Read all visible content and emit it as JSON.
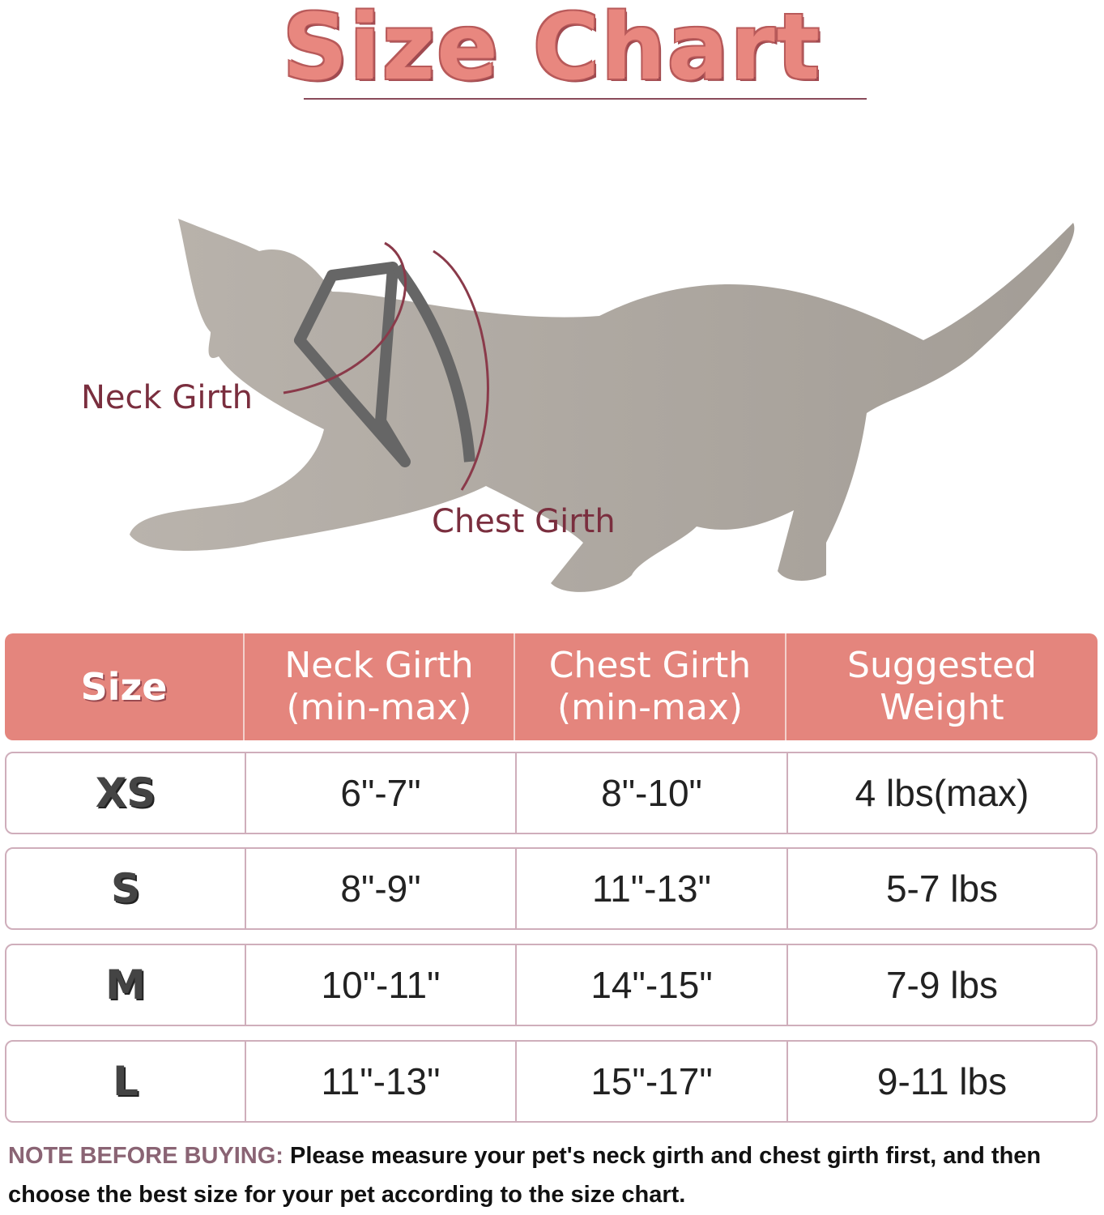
{
  "title": "Size Chart",
  "diagram": {
    "neck_label": "Neck Girth",
    "chest_label": "Chest Girth"
  },
  "table": {
    "headers": [
      "Size",
      "Neck Girth\n(min-max)",
      "Chest Girth\n(min-max)",
      "Suggested\nWeight"
    ],
    "rows": [
      [
        "XS",
        "6\"-7\"",
        "8\"-10\"",
        "4 lbs(max)"
      ],
      [
        "S",
        "8\"-9\"",
        "11\"-13\"",
        "5-7 lbs"
      ],
      [
        "M",
        "10\"-11\"",
        "14\"-15\"",
        "7-9 lbs"
      ],
      [
        "L",
        "11\"-13\"",
        "15\"-17\"",
        "9-11 lbs"
      ]
    ]
  },
  "note": {
    "lead": "NOTE BEFORE BUYING:",
    "text": " Please measure your pet's neck girth and chest girth first, and then choose the best size for your pet according to the size chart."
  },
  "colors": {
    "title": "#e8877f",
    "header_bg": "#e4857d",
    "label": "#7a2e3e",
    "border": "#cfaebb"
  }
}
